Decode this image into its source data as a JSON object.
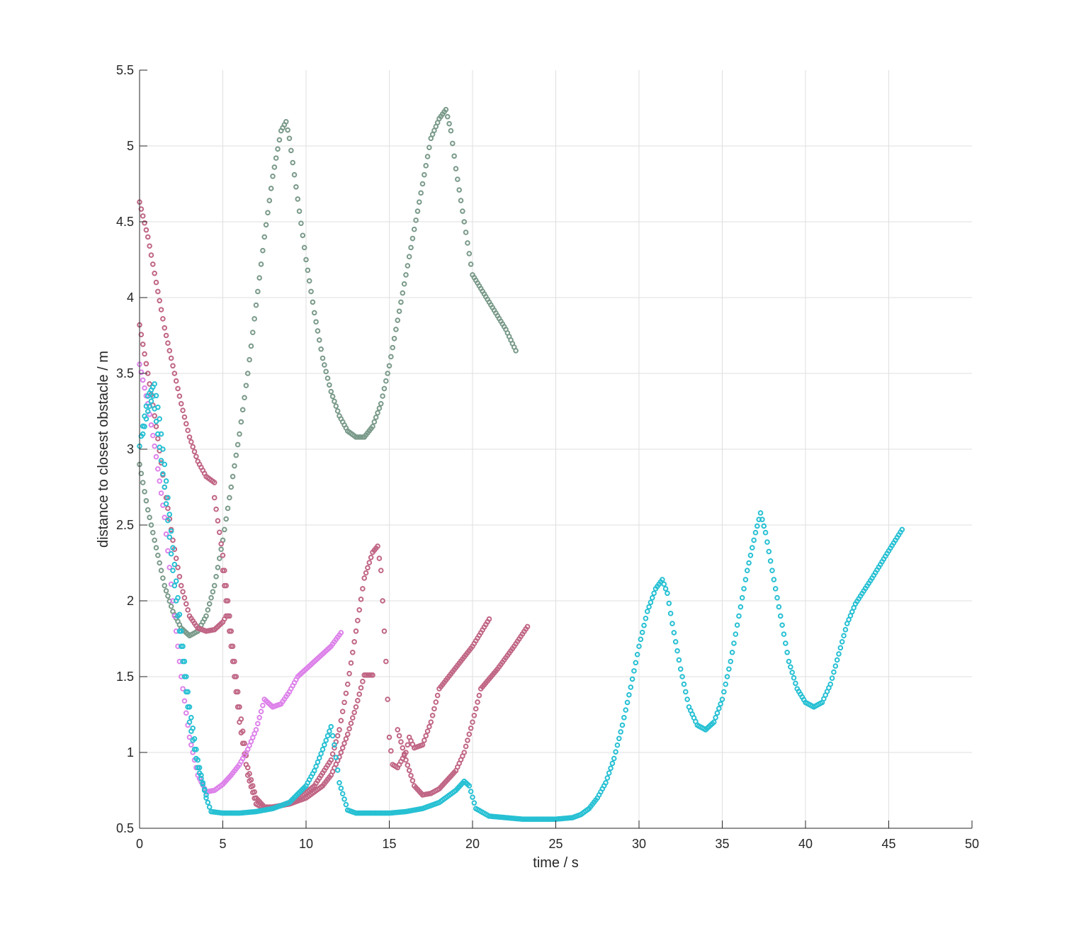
{
  "chart_data": {
    "type": "scatter",
    "title": "",
    "xlabel": "time / s",
    "ylabel": "distance to closest obstacle / m",
    "xlim": [
      0,
      50
    ],
    "ylim": [
      0.5,
      5.5
    ],
    "xticks": [
      0,
      5,
      10,
      15,
      20,
      25,
      30,
      35,
      40,
      45,
      50
    ],
    "yticks": [
      0.5,
      1,
      1.5,
      2,
      2.5,
      3,
      3.5,
      4,
      4.5,
      5,
      5.5
    ],
    "xtick_labels": [
      "0",
      "5",
      "10",
      "15",
      "20",
      "25",
      "30",
      "35",
      "40",
      "45",
      "50"
    ],
    "ytick_labels": [
      "0.5",
      "1",
      "1.5",
      "2",
      "2.5",
      "3",
      "3.5",
      "4",
      "4.5",
      "5",
      "5.5"
    ],
    "grid": true,
    "marker": "circle-open",
    "sample_interval": 0.1,
    "series": [
      {
        "color": "#7a9a8a",
        "keypoints": [
          [
            0,
            2.9
          ],
          [
            0.5,
            2.6
          ],
          [
            1.0,
            2.35
          ],
          [
            1.5,
            2.1
          ],
          [
            2.0,
            1.93
          ],
          [
            2.5,
            1.82
          ],
          [
            3.0,
            1.77
          ],
          [
            3.5,
            1.8
          ],
          [
            4.0,
            1.9
          ],
          [
            4.5,
            2.1
          ],
          [
            5.0,
            2.4
          ],
          [
            5.5,
            2.75
          ],
          [
            6.0,
            3.1
          ],
          [
            6.5,
            3.5
          ],
          [
            7.0,
            3.95
          ],
          [
            7.5,
            4.4
          ],
          [
            8.0,
            4.8
          ],
          [
            8.5,
            5.1
          ],
          [
            8.8,
            5.16
          ],
          [
            9.0,
            5.05
          ],
          [
            9.5,
            4.65
          ],
          [
            10.0,
            4.25
          ],
          [
            10.5,
            3.9
          ],
          [
            11.0,
            3.6
          ],
          [
            11.5,
            3.38
          ],
          [
            12.0,
            3.22
          ],
          [
            12.5,
            3.12
          ],
          [
            13.0,
            3.08
          ],
          [
            13.5,
            3.08
          ],
          [
            14.0,
            3.15
          ],
          [
            14.5,
            3.3
          ],
          [
            15.0,
            3.55
          ],
          [
            15.5,
            3.85
          ],
          [
            16.0,
            4.15
          ],
          [
            16.5,
            4.45
          ],
          [
            17.0,
            4.75
          ],
          [
            17.5,
            5.05
          ],
          [
            18.0,
            5.18
          ],
          [
            18.4,
            5.24
          ],
          [
            18.7,
            5.1
          ],
          [
            19.0,
            4.85
          ],
          [
            19.5,
            4.5
          ],
          [
            20.0,
            4.15
          ],
          [
            21.0,
            3.97
          ],
          [
            22.0,
            3.79
          ],
          [
            22.6,
            3.65
          ]
        ]
      },
      {
        "color": "#c06585",
        "keypoints": [
          [
            0,
            4.63
          ],
          [
            0.5,
            4.4
          ],
          [
            1.0,
            4.1
          ],
          [
            1.5,
            3.8
          ],
          [
            2.0,
            3.55
          ],
          [
            2.5,
            3.3
          ],
          [
            3.0,
            3.08
          ],
          [
            3.5,
            2.92
          ],
          [
            4.0,
            2.82
          ],
          [
            4.5,
            2.78
          ]
        ]
      },
      {
        "color": "#c06585",
        "keypoints": [
          [
            0,
            3.82
          ],
          [
            0.5,
            3.5
          ],
          [
            1.0,
            3.15
          ],
          [
            1.5,
            2.75
          ],
          [
            2.0,
            2.4
          ],
          [
            2.5,
            2.1
          ],
          [
            3.0,
            1.9
          ],
          [
            3.5,
            1.82
          ],
          [
            4.0,
            1.8
          ],
          [
            4.5,
            1.81
          ],
          [
            5.0,
            1.86
          ],
          [
            5.2,
            1.9
          ]
        ]
      },
      {
        "color": "#c06585",
        "keypoints": [
          [
            4.5,
            2.68
          ],
          [
            5.0,
            2.3
          ],
          [
            5.5,
            1.8
          ],
          [
            6.0,
            1.3
          ],
          [
            6.5,
            0.9
          ],
          [
            7.0,
            0.7
          ],
          [
            7.5,
            0.64
          ],
          [
            8.0,
            0.64
          ],
          [
            9.0,
            0.66
          ],
          [
            10.0,
            0.7
          ],
          [
            11.0,
            0.78
          ],
          [
            11.5,
            0.85
          ],
          [
            12.0,
            0.97
          ],
          [
            12.5,
            1.12
          ],
          [
            13.0,
            1.3
          ],
          [
            13.5,
            1.51
          ],
          [
            14.0,
            1.51
          ]
        ]
      },
      {
        "color": "#c06585",
        "keypoints": [
          [
            5.0,
            2.2
          ],
          [
            5.5,
            1.7
          ],
          [
            6.0,
            1.2
          ],
          [
            6.5,
            0.85
          ],
          [
            7.0,
            0.66
          ],
          [
            7.5,
            0.63
          ],
          [
            8.5,
            0.65
          ],
          [
            9.5,
            0.69
          ],
          [
            10.5,
            0.78
          ],
          [
            11.5,
            0.95
          ],
          [
            12.0,
            1.15
          ],
          [
            12.5,
            1.45
          ],
          [
            13.0,
            1.8
          ],
          [
            13.5,
            2.15
          ],
          [
            14.0,
            2.32
          ],
          [
            14.3,
            2.36
          ],
          [
            14.5,
            2.2
          ],
          [
            14.8,
            1.6
          ],
          [
            15.0,
            1.1
          ],
          [
            15.2,
            0.92
          ],
          [
            15.5,
            0.9
          ],
          [
            16.0,
            1.0
          ],
          [
            16.2,
            1.1
          ],
          [
            16.5,
            1.03
          ],
          [
            17.0,
            1.05
          ],
          [
            17.5,
            1.2
          ],
          [
            18.0,
            1.42
          ],
          [
            19.0,
            1.56
          ],
          [
            20.0,
            1.7
          ],
          [
            21.0,
            1.88
          ]
        ]
      },
      {
        "color": "#c06585",
        "keypoints": [
          [
            15.5,
            1.15
          ],
          [
            16.0,
            0.95
          ],
          [
            16.5,
            0.78
          ],
          [
            17.0,
            0.72
          ],
          [
            17.5,
            0.73
          ],
          [
            18.0,
            0.76
          ],
          [
            18.5,
            0.82
          ],
          [
            19.0,
            0.88
          ],
          [
            19.5,
            1.0
          ],
          [
            20.0,
            1.2
          ],
          [
            20.5,
            1.42
          ],
          [
            21.5,
            1.55
          ],
          [
            22.5,
            1.7
          ],
          [
            23.3,
            1.83
          ]
        ]
      },
      {
        "color": "#dd82ea",
        "keypoints": [
          [
            0,
            3.56
          ],
          [
            0.5,
            3.3
          ],
          [
            1.0,
            2.95
          ],
          [
            1.5,
            2.55
          ],
          [
            2.0,
            2.0
          ],
          [
            2.5,
            1.5
          ],
          [
            3.0,
            1.1
          ],
          [
            3.5,
            0.85
          ],
          [
            4.0,
            0.74
          ],
          [
            4.5,
            0.75
          ],
          [
            5.0,
            0.79
          ],
          [
            5.5,
            0.85
          ],
          [
            6.0,
            0.92
          ],
          [
            6.5,
            1.02
          ],
          [
            7.0,
            1.15
          ],
          [
            7.5,
            1.35
          ],
          [
            8.0,
            1.3
          ],
          [
            8.5,
            1.32
          ],
          [
            9.0,
            1.4
          ],
          [
            9.5,
            1.5
          ],
          [
            10.5,
            1.6
          ],
          [
            11.5,
            1.7
          ],
          [
            12.1,
            1.79
          ]
        ]
      },
      {
        "color": "#26c0d3",
        "keypoints": [
          [
            0,
            3.02
          ],
          [
            0.5,
            3.35
          ],
          [
            0.9,
            3.43
          ],
          [
            1.2,
            3.2
          ],
          [
            1.5,
            2.9
          ],
          [
            2.0,
            2.35
          ],
          [
            2.5,
            1.8
          ],
          [
            3.0,
            1.3
          ],
          [
            3.5,
            0.95
          ],
          [
            4.0,
            0.7
          ],
          [
            4.3,
            0.61
          ],
          [
            5.0,
            0.6
          ],
          [
            6.0,
            0.6
          ],
          [
            7.0,
            0.61
          ],
          [
            8.0,
            0.63
          ],
          [
            9.0,
            0.67
          ],
          [
            10.0,
            0.78
          ],
          [
            10.5,
            0.88
          ],
          [
            11.0,
            1.02
          ],
          [
            11.5,
            1.17
          ],
          [
            11.7,
            1.05
          ],
          [
            12.0,
            0.8
          ],
          [
            12.5,
            0.62
          ],
          [
            13.0,
            0.6
          ],
          [
            14.0,
            0.6
          ],
          [
            15.0,
            0.6
          ],
          [
            16.0,
            0.61
          ],
          [
            17.0,
            0.63
          ],
          [
            18.0,
            0.67
          ],
          [
            19.0,
            0.75
          ],
          [
            19.5,
            0.81
          ],
          [
            19.8,
            0.78
          ],
          [
            20.2,
            0.63
          ],
          [
            21.0,
            0.58
          ],
          [
            22.0,
            0.57
          ],
          [
            23.0,
            0.56
          ],
          [
            24.0,
            0.56
          ],
          [
            25.0,
            0.56
          ],
          [
            26.0,
            0.57
          ],
          [
            26.5,
            0.59
          ],
          [
            27.0,
            0.63
          ],
          [
            27.5,
            0.7
          ],
          [
            28.0,
            0.8
          ],
          [
            28.5,
            0.96
          ],
          [
            29.0,
            1.18
          ],
          [
            29.5,
            1.43
          ],
          [
            30.0,
            1.7
          ],
          [
            30.5,
            1.93
          ],
          [
            31.0,
            2.08
          ],
          [
            31.4,
            2.14
          ],
          [
            31.7,
            2.05
          ],
          [
            32.0,
            1.85
          ],
          [
            32.5,
            1.55
          ],
          [
            33.0,
            1.3
          ],
          [
            33.5,
            1.18
          ],
          [
            34.0,
            1.15
          ],
          [
            34.5,
            1.2
          ],
          [
            35.0,
            1.35
          ],
          [
            35.5,
            1.6
          ],
          [
            36.0,
            1.9
          ],
          [
            36.5,
            2.2
          ],
          [
            37.0,
            2.45
          ],
          [
            37.3,
            2.58
          ],
          [
            37.6,
            2.45
          ],
          [
            38.0,
            2.2
          ],
          [
            38.5,
            1.9
          ],
          [
            39.0,
            1.6
          ],
          [
            39.5,
            1.42
          ],
          [
            40.0,
            1.33
          ],
          [
            40.5,
            1.3
          ],
          [
            41.0,
            1.33
          ],
          [
            41.5,
            1.45
          ],
          [
            42.0,
            1.65
          ],
          [
            42.5,
            1.85
          ],
          [
            43.0,
            1.98
          ],
          [
            44.0,
            2.15
          ],
          [
            45.0,
            2.33
          ],
          [
            45.8,
            2.47
          ]
        ]
      },
      {
        "color": "#26c0d3",
        "keypoints": [
          [
            0.2,
            3.1
          ],
          [
            0.5,
            3.25
          ],
          [
            0.8,
            3.35
          ],
          [
            1.1,
            3.1
          ],
          [
            1.5,
            2.75
          ],
          [
            2.0,
            2.2
          ],
          [
            2.5,
            1.7
          ],
          [
            3.0,
            1.2
          ],
          [
            3.5,
            0.9
          ],
          [
            4.0,
            0.72
          ]
        ]
      }
    ]
  }
}
